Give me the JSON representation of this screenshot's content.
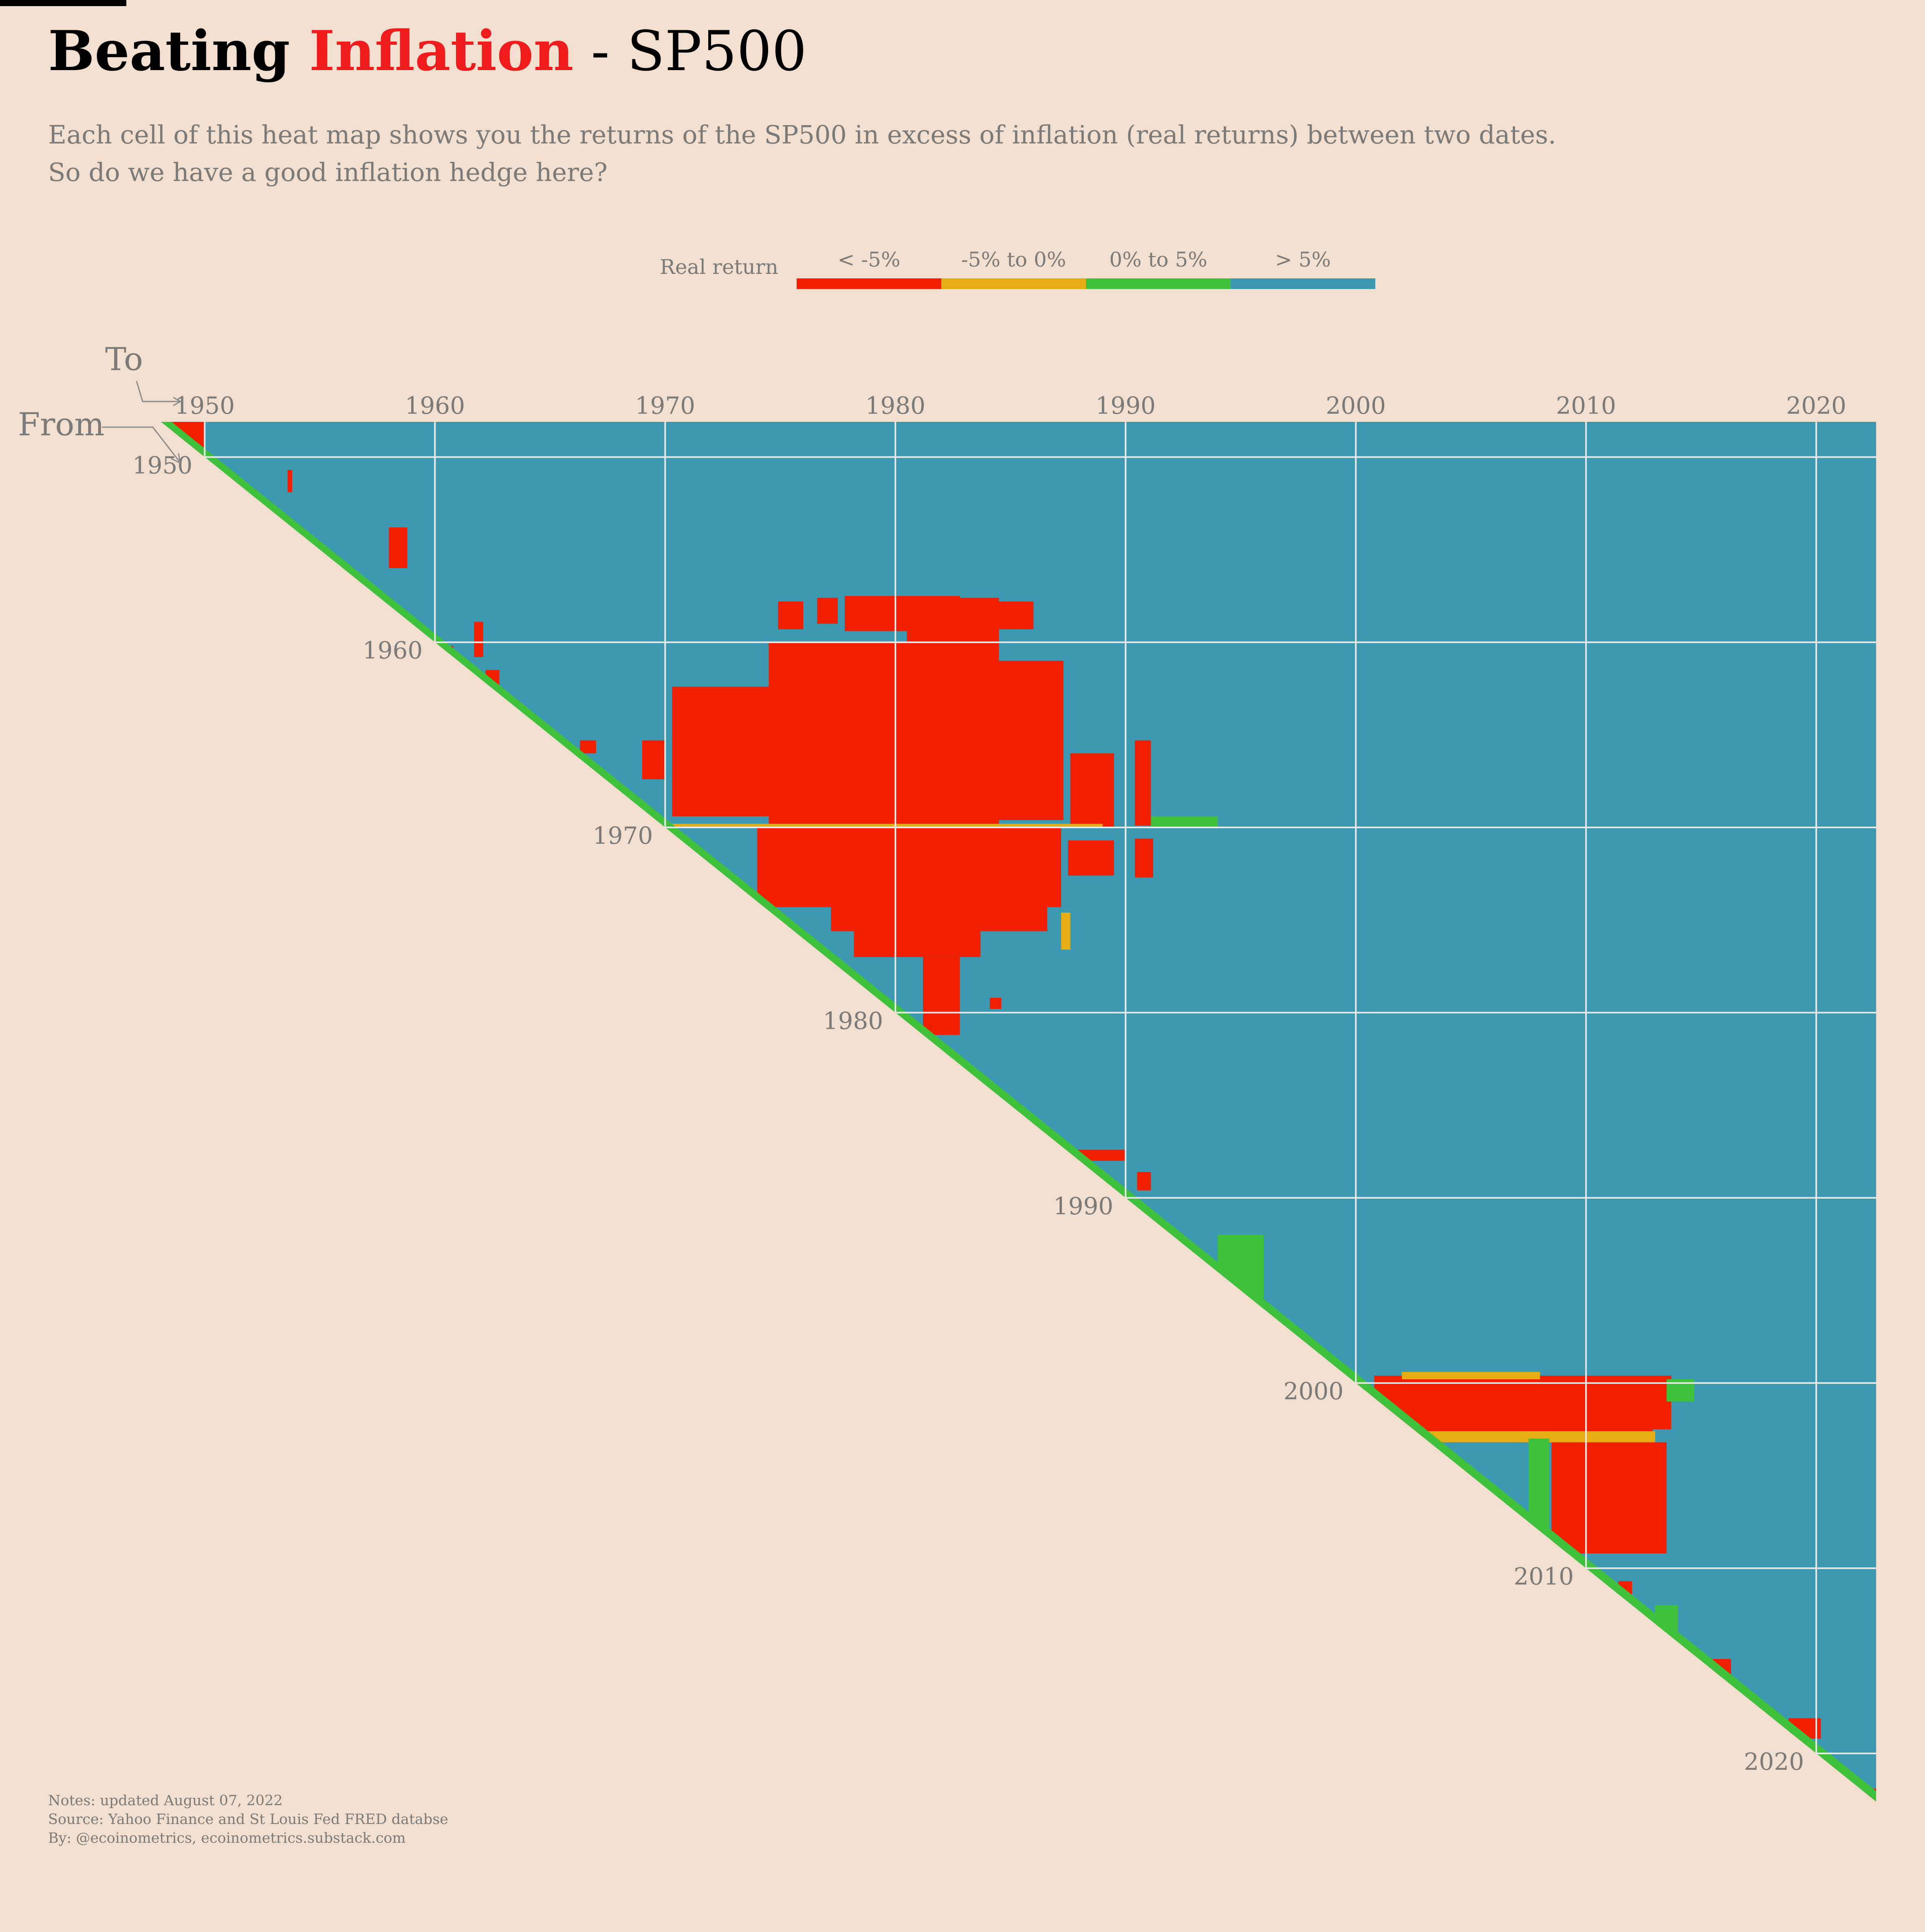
{
  "title": {
    "part1": "Beating ",
    "part2": "Inflation",
    "part3": " - SP500",
    "accent_color": "#ee1c1c"
  },
  "subtitle": {
    "line1": "Each cell of this heat map shows you the returns of the SP500 in excess of inflation (real returns) between two dates.",
    "line2": "So do we have a good inflation hedge here?"
  },
  "legend": {
    "title": "Real return",
    "items": [
      {
        "label": "< -5%",
        "color": "#f01f00"
      },
      {
        "label": "-5% to 0%",
        "color": "#e6ac14"
      },
      {
        "label": "0% to 5%",
        "color": "#3fc13c"
      },
      {
        "label": "> 5%",
        "color": "#3d99b2"
      }
    ]
  },
  "axis": {
    "to_label": "To",
    "from_label": "From"
  },
  "footer": {
    "notes": "Notes: updated August 07, 2022",
    "source": "Source: Yahoo Finance and St Louis Fed FRED databse",
    "by": "By: @ecoinometrics, ecoinometrics.substack.com"
  },
  "chart_data": {
    "type": "heatmap",
    "description_axes": {
      "x": "To (year)",
      "y": "From (year)"
    },
    "x_range": [
      1948.1,
      2022.6
    ],
    "y_range": [
      1948.1,
      2022.6
    ],
    "x_ticks": [
      1950,
      1960,
      1970,
      1980,
      1990,
      2000,
      2010,
      2020
    ],
    "y_ticks": [
      1950,
      1960,
      1970,
      1980,
      1990,
      2000,
      2010,
      2020
    ],
    "grid": true,
    "legend_position": "top-center",
    "categories": [
      "< -5%",
      "-5% to 0%",
      "0% to 5%",
      "> 5%"
    ],
    "default_category": "> 5%",
    "regions": [
      {
        "from": [
          1948.1,
          1950.0
        ],
        "to": [
          1948.5,
          1950.0
        ],
        "category": "< -5%"
      },
      {
        "from": [
          1950.7,
          1951.9
        ],
        "to": [
          1953.6,
          1953.8
        ],
        "category": "< -5%"
      },
      {
        "from": [
          1953.8,
          1956.0
        ],
        "to": [
          1958.0,
          1958.8
        ],
        "category": "< -5%"
      },
      {
        "from": [
          1958.3,
          1959.2
        ],
        "to": [
          1957.2,
          1958.0
        ],
        "category": "< -5%"
      },
      {
        "from": [
          1958.9,
          1960.8
        ],
        "to": [
          1961.7,
          1962.1
        ],
        "category": "< -5%"
      },
      {
        "from": [
          1960.2,
          1960.6
        ],
        "to": [
          1960.0,
          1960.8
        ],
        "category": "< -5%"
      },
      {
        "from": [
          1961.5,
          1962.6
        ],
        "to": [
          1962.2,
          1962.8
        ],
        "category": "< -5%"
      },
      {
        "from": [
          1965.3,
          1966.0
        ],
        "to": [
          1966.3,
          1967.0
        ],
        "category": "< -5%"
      },
      {
        "from": [
          1965.3,
          1967.4
        ],
        "to": [
          1969.0,
          1970.0
        ],
        "category": "< -5%"
      },
      {
        "from": [
          1962.4,
          1969.4
        ],
        "to": [
          1970.3,
          1975.2
        ],
        "category": "< -5%"
      },
      {
        "from": [
          1960.0,
          1969.8
        ],
        "to": [
          1974.5,
          1980.5
        ],
        "category": "< -5%"
      },
      {
        "from": [
          1957.6,
          1969.8
        ],
        "to": [
          1980.5,
          1984.5
        ],
        "category": "< -5%"
      },
      {
        "from": [
          1961.0,
          1969.6
        ],
        "to": [
          1984.5,
          1987.3
        ],
        "category": "< -5%"
      },
      {
        "from": [
          1957.8,
          1959.3
        ],
        "to": [
          1974.9,
          1976.0
        ],
        "category": "< -5%"
      },
      {
        "from": [
          1957.6,
          1959.0
        ],
        "to": [
          1976.6,
          1977.5
        ],
        "category": "< -5%"
      },
      {
        "from": [
          1957.5,
          1959.4
        ],
        "to": [
          1977.8,
          1982.8
        ],
        "category": "< -5%"
      },
      {
        "from": [
          1957.8,
          1959.3
        ],
        "to": [
          1983.7,
          1986.0
        ],
        "category": "< -5%"
      },
      {
        "from": [
          1966.0,
          1970.0
        ],
        "to": [
          1987.6,
          1989.5
        ],
        "category": "< -5%"
      },
      {
        "from": [
          1965.3,
          1969.9
        ],
        "to": [
          1990.4,
          1991.1
        ],
        "category": "< -5%"
      },
      {
        "from": [
          1970.0,
          1974.3
        ],
        "to": [
          1974.0,
          1987.2
        ],
        "category": "< -5%"
      },
      {
        "from": [
          1970.7,
          1972.6
        ],
        "to": [
          1987.5,
          1989.5
        ],
        "category": "< -5%"
      },
      {
        "from": [
          1970.6,
          1972.7
        ],
        "to": [
          1990.4,
          1991.2
        ],
        "category": "< -5%"
      },
      {
        "from": [
          1974.3,
          1975.6
        ],
        "to": [
          1977.2,
          1986.6
        ],
        "category": "< -5%"
      },
      {
        "from": [
          1975.6,
          1977.0
        ],
        "to": [
          1978.2,
          1983.7
        ],
        "category": "< -5%"
      },
      {
        "from": [
          1977.0,
          1981.2
        ],
        "to": [
          1981.2,
          1982.8
        ],
        "category": "< -5%"
      },
      {
        "from": [
          1979.2,
          1979.8
        ],
        "to": [
          1984.1,
          1984.6
        ],
        "category": "< -5%"
      },
      {
        "from": [
          1987.4,
          1988.0
        ],
        "to": [
          1987.6,
          1990.0
        ],
        "category": "< -5%"
      },
      {
        "from": [
          1988.6,
          1989.6
        ],
        "to": [
          1990.5,
          1991.1
        ],
        "category": "< -5%"
      },
      {
        "from": [
          1999.6,
          2002.5
        ],
        "to": [
          2000.8,
          2013.7
        ],
        "category": "< -5%"
      },
      {
        "from": [
          2001.5,
          2003.2
        ],
        "to": [
          2001.8,
          2012.9
        ],
        "category": "< -5%"
      },
      {
        "from": [
          2003.2,
          2009.2
        ],
        "to": [
          2008.5,
          2013.5
        ],
        "category": "< -5%"
      },
      {
        "from": [
          2010.7,
          2011.4
        ],
        "to": [
          2011.4,
          2012.0
        ],
        "category": "< -5%"
      },
      {
        "from": [
          2014.9,
          2015.9
        ],
        "to": [
          2015.5,
          2016.3
        ],
        "category": "< -5%"
      },
      {
        "from": [
          2018.1,
          2019.2
        ],
        "to": [
          2018.8,
          2020.2
        ],
        "category": "< -5%"
      },
      {
        "from": [
          2021.9,
          2022.6
        ],
        "to": [
          2022.2,
          2022.6
        ],
        "category": "< -5%"
      },
      {
        "from": [
          1974.6,
          1976.6
        ],
        "to": [
          1987.2,
          1987.6
        ],
        "category": "-5% to 0%"
      },
      {
        "from": [
          1969.8,
          1970.0
        ],
        "to": [
          1966.0,
          1989.0
        ],
        "category": "-5% to 0%"
      },
      {
        "from": [
          1999.4,
          1999.8
        ],
        "to": [
          2002.0,
          2008.0
        ],
        "category": "-5% to 0%"
      },
      {
        "from": [
          2002.6,
          2003.2
        ],
        "to": [
          2002.0,
          2013.0
        ],
        "category": "-5% to 0%"
      },
      {
        "from": [
          1999.8,
          2001.0
        ],
        "to": [
          2013.5,
          2014.7
        ],
        "category": "0% to 5%"
      },
      {
        "from": [
          2003.0,
          2008.0
        ],
        "to": [
          2007.5,
          2008.4
        ],
        "category": "0% to 5%"
      },
      {
        "from": [
          1969.4,
          1970.0
        ],
        "to": [
          1991.1,
          1994.0
        ],
        "category": "0% to 5%"
      },
      {
        "from": [
          1992.0,
          1996.0
        ],
        "to": [
          1994.0,
          1996.0
        ],
        "category": "0% to 5%"
      },
      {
        "from": [
          2012.0,
          2013.5
        ],
        "to": [
          2013.0,
          2014.0
        ],
        "category": "0% to 5%"
      }
    ]
  }
}
